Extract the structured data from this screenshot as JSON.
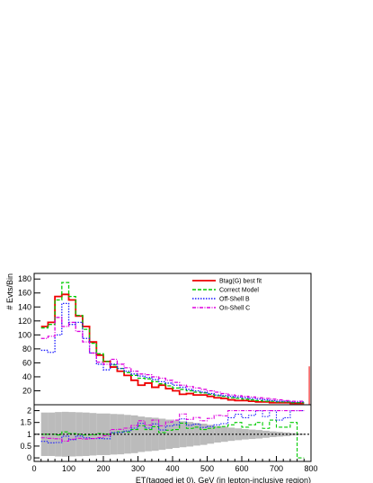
{
  "chart_data": {
    "type": "line",
    "step": true,
    "xlabel": "ET(tagged jet 0), GeV (in lepton-inclusive region)",
    "ylabel": "# Evts/Bin",
    "xlim": [
      0,
      800
    ],
    "ylim": [
      0,
      188
    ],
    "ratio_ylim": [
      -0.15,
      2.25
    ],
    "x_ticks": [
      0,
      100,
      200,
      300,
      400,
      500,
      600,
      700,
      800
    ],
    "y_ticks": [
      20,
      40,
      60,
      80,
      100,
      120,
      140,
      160,
      180
    ],
    "ratio_ticks": [
      0,
      0.5,
      1,
      1.5,
      2
    ],
    "bin_width": 20,
    "bin_start": 20,
    "legend_position": "top-right",
    "series": [
      {
        "name": "Btag(G) best fit",
        "color": "#ee0000",
        "dash": "",
        "values": [
          112,
          118,
          155,
          158,
          150,
          127,
          112,
          90,
          71,
          62,
          54,
          48,
          42,
          35,
          28,
          31,
          25,
          28,
          23,
          20,
          15,
          16,
          14,
          14,
          12,
          10,
          9,
          7,
          6,
          6,
          5,
          4,
          4,
          3,
          3,
          3,
          2,
          2
        ]
      },
      {
        "name": "Correct Model",
        "color": "#00cc00",
        "dash": "4,2",
        "values": [
          110,
          115,
          150,
          175,
          155,
          128,
          108,
          88,
          73,
          62,
          57,
          52,
          46,
          42,
          38,
          37,
          33,
          30,
          27,
          24,
          22,
          20,
          18,
          17,
          15,
          13,
          12,
          10,
          9,
          8,
          7,
          6,
          5,
          5,
          4,
          4,
          3,
          3
        ]
      },
      {
        "name": "Off-Shell B",
        "color": "#1a1aff",
        "dash": "1.5,1.5",
        "values": [
          78,
          75,
          100,
          145,
          115,
          118,
          95,
          74,
          58,
          50,
          58,
          52,
          48,
          44,
          41,
          39,
          36,
          33,
          31,
          28,
          25,
          22,
          20,
          18,
          16,
          14,
          13,
          12,
          11,
          10,
          9,
          8,
          7,
          6,
          5,
          5,
          4,
          4
        ]
      },
      {
        "name": "On-Shell C",
        "color": "#dd00dd",
        "dash": "4,1.5,1,1.5",
        "values": [
          95,
          98,
          125,
          112,
          118,
          105,
          90,
          74,
          61,
          58,
          65,
          58,
          53,
          48,
          44,
          43,
          40,
          38,
          35,
          32,
          28,
          26,
          24,
          22,
          20,
          18,
          16,
          14,
          13,
          12,
          11,
          10,
          9,
          8,
          7,
          6,
          5,
          5
        ]
      }
    ],
    "ratio_band": [
      0.92,
      0.92,
      0.94,
      0.95,
      0.94,
      0.93,
      0.92,
      0.9,
      0.88,
      0.88,
      0.86,
      0.85,
      0.82,
      0.8,
      0.75,
      0.72,
      0.7,
      0.66,
      0.62,
      0.58,
      0.55,
      0.52,
      0.48,
      0.45,
      0.4,
      0.35,
      0.32,
      0.28,
      0.25,
      0.22,
      0.2,
      0.18,
      0.15,
      0.12,
      0.1,
      0.08,
      0.05,
      0.03
    ],
    "ratio_series": [
      {
        "name": "Correct Model",
        "color": "#00cc00",
        "dash": "4,2",
        "values": [
          1.0,
          1.0,
          0.97,
          1.1,
          1.03,
          1.0,
          0.97,
          0.98,
          1.03,
          1.0,
          1.06,
          1.1,
          1.1,
          1.2,
          1.36,
          1.2,
          1.32,
          1.07,
          1.17,
          1.2,
          1.47,
          1.25,
          1.3,
          1.2,
          1.25,
          1.3,
          1.33,
          1.4,
          1.5,
          1.3,
          1.4,
          1.5,
          1.25,
          1.6,
          1.3,
          1.3,
          1.5,
          0.0
        ]
      },
      {
        "name": "Off-Shell B",
        "color": "#1a1aff",
        "dash": "1.5,1.5",
        "values": [
          0.7,
          0.64,
          0.65,
          0.92,
          0.77,
          0.93,
          0.85,
          0.82,
          0.82,
          0.81,
          1.07,
          1.08,
          1.14,
          1.26,
          1.46,
          1.26,
          1.44,
          1.18,
          1.35,
          1.4,
          1.65,
          1.38,
          1.43,
          1.29,
          1.33,
          1.4,
          1.45,
          1.7,
          1.85,
          1.7,
          1.8,
          2.0,
          1.75,
          2.0,
          1.6,
          1.7,
          2.0,
          2.0
        ]
      },
      {
        "name": "On-Shell C",
        "color": "#dd00dd",
        "dash": "4,1.5,1,1.5",
        "values": [
          0.85,
          0.83,
          0.81,
          0.71,
          0.79,
          0.83,
          0.8,
          0.82,
          0.86,
          0.94,
          1.2,
          1.21,
          1.26,
          1.37,
          1.57,
          1.39,
          1.6,
          1.36,
          1.52,
          1.6,
          1.86,
          1.63,
          1.71,
          1.57,
          1.67,
          1.8,
          1.78,
          2.0,
          2.0,
          2.0,
          2.0,
          2.0,
          2.0,
          2.0,
          2.0,
          2.0,
          2.0,
          2.0
        ]
      }
    ]
  }
}
